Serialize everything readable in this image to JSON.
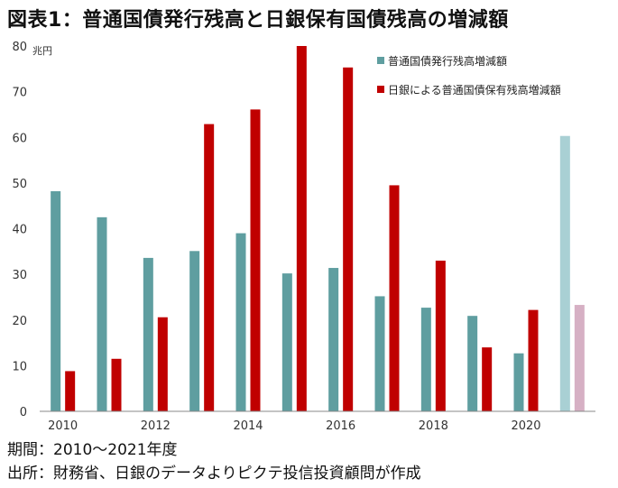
{
  "title": "図表1：普通国債発行残高と日銀保有国債残高の増減額",
  "footnotes": {
    "period": "期間：2010～2021年度",
    "source": "出所：財務省、日銀のデータよりピクテ投信投資顧問が作成"
  },
  "colors": {
    "series1": "#5f9ea0",
    "series2": "#c00000",
    "series1_estimate": "#a9d0d4",
    "series2_estimate": "#d6b0c4",
    "axis": "#888888"
  },
  "chart_data": {
    "type": "bar",
    "unit": "兆円",
    "categories": [
      "2010",
      "2011",
      "2012",
      "2013",
      "2014",
      "2015",
      "2016",
      "2017",
      "2018",
      "2019",
      "2020",
      "2021"
    ],
    "x_tick_labels": [
      "2010",
      "2012",
      "2014",
      "2016",
      "2018",
      "2020"
    ],
    "y_ticks": [
      "0",
      "10",
      "20",
      "30",
      "40",
      "50",
      "60",
      "70",
      "80"
    ],
    "ylim": [
      0,
      80
    ],
    "grid": false,
    "legend_position": "top-right",
    "series": [
      {
        "name": "普通国債発行残高増減額",
        "values": [
          48.2,
          42.5,
          33.6,
          35.1,
          39.0,
          30.2,
          31.4,
          25.2,
          22.7,
          20.9,
          12.7,
          60.3
        ]
      },
      {
        "name": "日銀による普通国債保有残高増減額",
        "values": [
          8.8,
          11.5,
          20.6,
          62.9,
          66.1,
          80.0,
          75.3,
          49.5,
          33.0,
          14.0,
          22.2,
          23.3
        ]
      }
    ],
    "estimate_category": "2021"
  }
}
